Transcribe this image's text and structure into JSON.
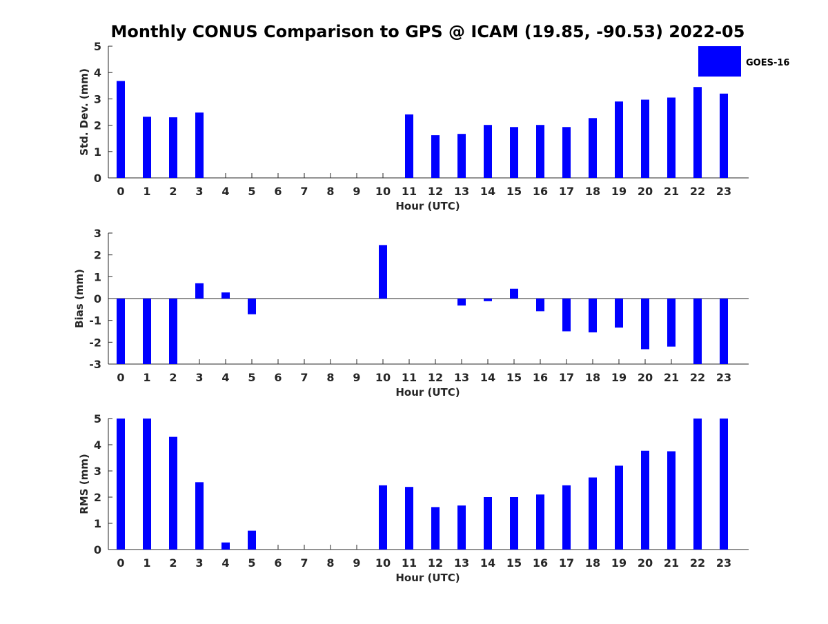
{
  "colors": {
    "bar": "#0000ff",
    "axis": "#262626",
    "background": "#ffffff"
  },
  "chart_data": {
    "type": "bar",
    "title": "Monthly CONUS Comparison to GPS @ ICAM (19.85, -90.53) 2022-05",
    "legend": {
      "label": "GOES-16",
      "position": "top-right"
    },
    "categories": [
      "0",
      "1",
      "2",
      "3",
      "4",
      "5",
      "6",
      "7",
      "8",
      "9",
      "10",
      "11",
      "12",
      "13",
      "14",
      "15",
      "16",
      "17",
      "18",
      "19",
      "20",
      "21",
      "22",
      "23"
    ],
    "panels": [
      {
        "name": "std-dev",
        "ylabel": "Std. Dev. (mm)",
        "xlabel": "Hour (UTC)",
        "ylim": [
          0,
          5
        ],
        "yticks": [
          "0",
          "1",
          "2",
          "3",
          "4",
          "5"
        ],
        "zero_line": false,
        "values": [
          3.68,
          2.32,
          2.3,
          2.48,
          null,
          null,
          null,
          null,
          null,
          null,
          null,
          2.41,
          1.62,
          1.67,
          2.01,
          1.93,
          2.01,
          1.93,
          2.27,
          2.9,
          2.97,
          3.05,
          3.45,
          3.2
        ]
      },
      {
        "name": "bias",
        "ylabel": "Bias (mm)",
        "xlabel": "Hour (UTC)",
        "ylim": [
          -3,
          3
        ],
        "yticks": [
          "-3",
          "-2",
          "-1",
          "0",
          "1",
          "2",
          "3"
        ],
        "zero_line": true,
        "values": [
          -3.0,
          -3.0,
          -3.0,
          0.7,
          0.28,
          -0.72,
          null,
          null,
          null,
          null,
          2.45,
          null,
          null,
          -0.32,
          -0.12,
          0.45,
          -0.58,
          -1.5,
          -1.55,
          -1.33,
          -2.32,
          -2.2,
          -3.0,
          -3.0
        ]
      },
      {
        "name": "rms",
        "ylabel": "RMS (mm)",
        "xlabel": "Hour (UTC)",
        "ylim": [
          0,
          5
        ],
        "yticks": [
          "0",
          "1",
          "2",
          "3",
          "4",
          "5"
        ],
        "zero_line": false,
        "values": [
          5.0,
          5.0,
          4.3,
          2.57,
          0.27,
          0.72,
          null,
          null,
          null,
          null,
          2.45,
          2.39,
          1.62,
          1.68,
          2.0,
          2.0,
          2.1,
          2.45,
          2.75,
          3.2,
          3.77,
          3.75,
          5.0,
          5.0
        ]
      }
    ]
  }
}
